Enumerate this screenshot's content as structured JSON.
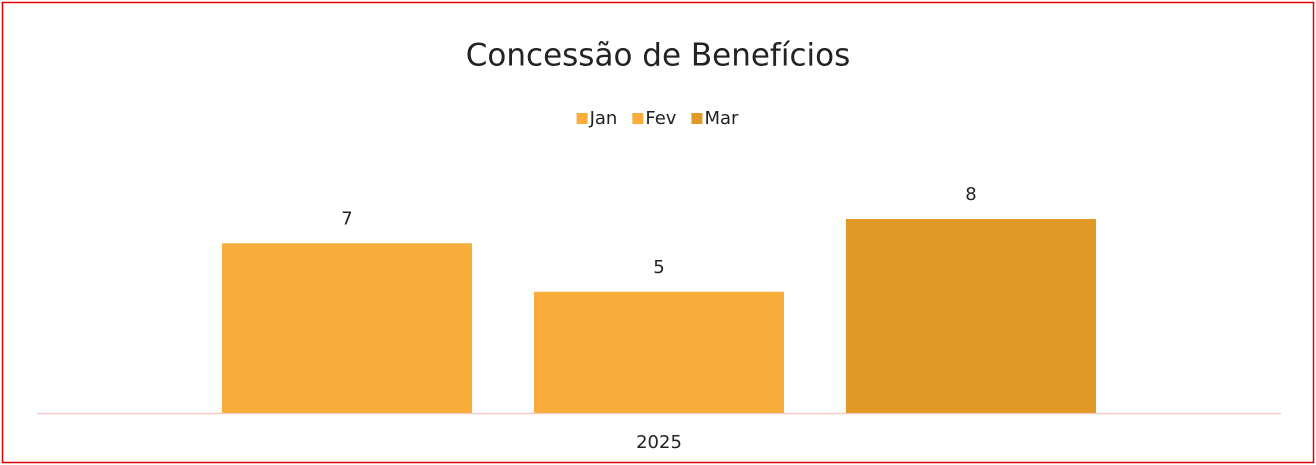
{
  "chart_data": {
    "type": "bar",
    "title": "Concessão de Benefícios",
    "categories": [
      "2025"
    ],
    "series": [
      {
        "name": "Jan",
        "color": "#F9AE3B",
        "values": [
          7
        ]
      },
      {
        "name": "Fev",
        "color": "#F9AE3B",
        "values": [
          5
        ]
      },
      {
        "name": "Mar",
        "color": "#E19A28",
        "values": [
          8
        ]
      }
    ],
    "legend": "top"
  }
}
